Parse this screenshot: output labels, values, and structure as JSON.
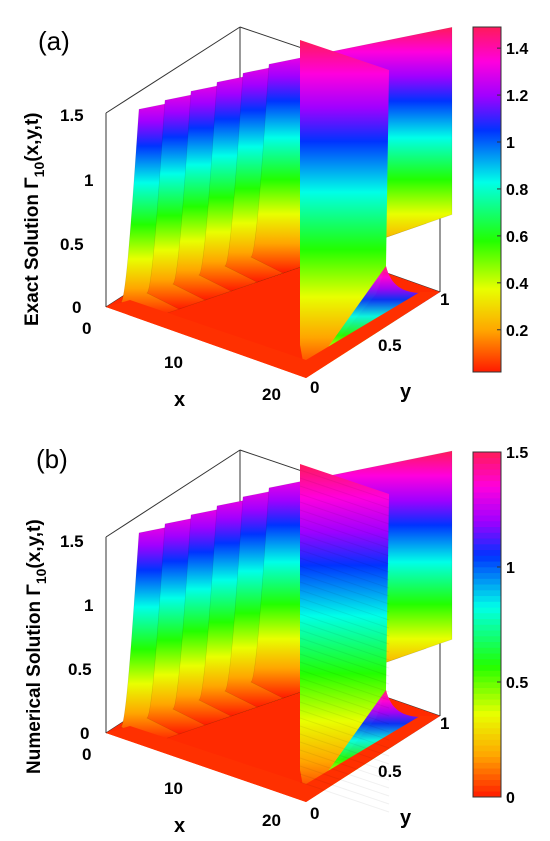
{
  "chart_data": [
    {
      "panel_label": "(a)",
      "type": "surface",
      "z_label": "Exact Solution Γ10(x,y,t)",
      "z_label_main": "Exact Solution Γ",
      "z_label_sub": "10",
      "z_label_tail": "(x,y,t)",
      "xlabel": "x",
      "ylabel": "y",
      "x_ticks": [
        "0",
        "10",
        "20"
      ],
      "y_ticks": [
        "0",
        "0.5",
        "1"
      ],
      "z_ticks": [
        "0",
        "0.5",
        "1",
        "1.5"
      ],
      "xlim": [
        0,
        20
      ],
      "ylim": [
        0,
        1
      ],
      "zlim": [
        0,
        1.5
      ],
      "colorbar": {
        "ticks": [
          "0.2",
          "0.4",
          "0.6",
          "0.8",
          "1",
          "1.2",
          "1.4"
        ],
        "range": [
          0.02,
          1.49
        ],
        "smooth": true
      },
      "peaks_count": 6,
      "peak_value": 1.49
    },
    {
      "panel_label": "(b)",
      "type": "surface",
      "z_label": "Numerical Solution Γ10(x,y,t)",
      "z_label_main": "Numerical Solution Γ",
      "z_label_sub": "10",
      "z_label_tail": "(x,y,t)",
      "xlabel": "x",
      "ylabel": "y",
      "x_ticks": [
        "0",
        "10",
        "20"
      ],
      "y_ticks": [
        "0",
        "0.5",
        "1"
      ],
      "z_ticks": [
        "0",
        "0.5",
        "1",
        "1.5"
      ],
      "xlim": [
        0,
        20
      ],
      "ylim": [
        0,
        1
      ],
      "zlim": [
        0,
        1.5
      ],
      "colorbar": {
        "ticks": [
          "0",
          "0.5",
          "1",
          "1.5"
        ],
        "range": [
          0,
          1.5
        ],
        "smooth": false
      },
      "peaks_count": 6,
      "peak_value": 1.5
    }
  ]
}
